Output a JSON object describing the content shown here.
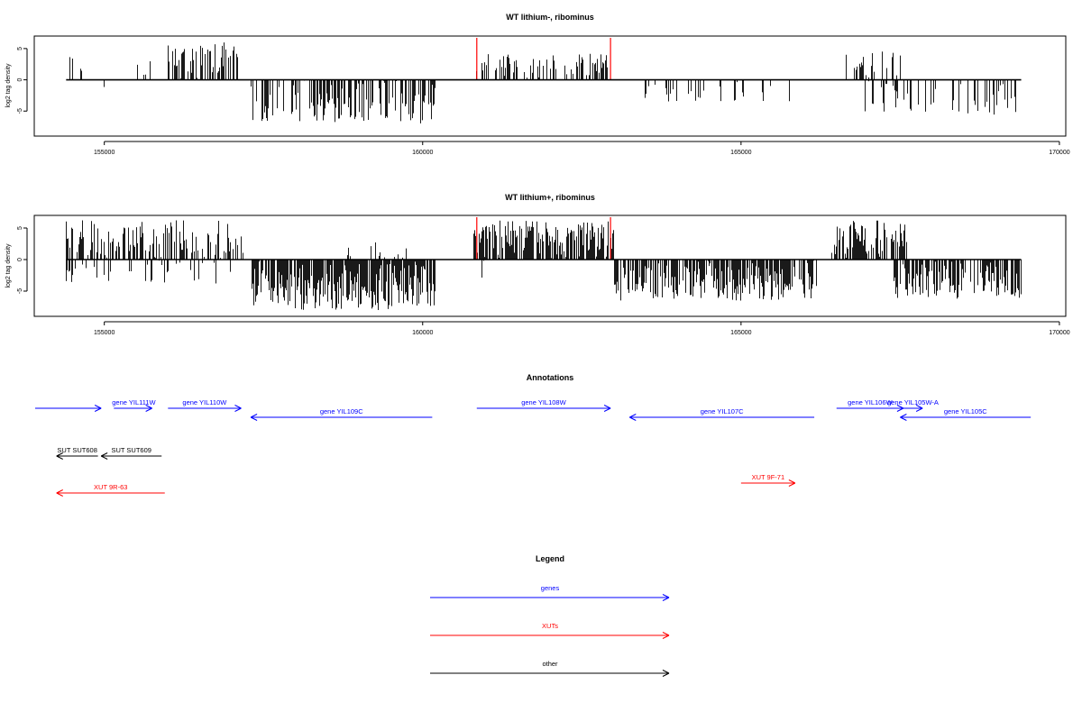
{
  "chart_data": [
    {
      "type": "bar",
      "title": "WT lithium-, ribominus",
      "ylabel": "log2 tag density",
      "xlim": [
        153900,
        170100
      ],
      "ylim": [
        -9,
        7
      ],
      "x_ticks": [
        "155000",
        "160000",
        "165000",
        "170000"
      ],
      "x_tick_values": [
        155000,
        160000,
        165000,
        170000
      ],
      "y_ticks": [
        "5",
        "0",
        "-5"
      ],
      "y_tick_values": [
        5,
        0,
        -5
      ],
      "plus_strand_segments": [
        {
          "from": 154450,
          "to": 154700,
          "density": 0.16,
          "max": 4.2
        },
        {
          "from": 154850,
          "to": 155100,
          "density": 0.05,
          "max": 2.0
        },
        {
          "from": 155300,
          "to": 155750,
          "density": 0.1,
          "max": 3.8
        },
        {
          "from": 156000,
          "to": 157100,
          "density": 0.55,
          "max": 6.0
        },
        {
          "from": 160800,
          "to": 162900,
          "density": 0.4,
          "max": 4.2
        },
        {
          "from": 164300,
          "to": 164400,
          "density": 0.05,
          "max": 1.5
        },
        {
          "from": 165150,
          "to": 165200,
          "density": 0.1,
          "max": 2.5
        },
        {
          "from": 166500,
          "to": 167500,
          "density": 0.25,
          "max": 4.6
        }
      ],
      "minus_strand_segments": [
        {
          "from": 154500,
          "to": 154600,
          "density": 0.08,
          "max": 2.5
        },
        {
          "from": 154900,
          "to": 155000,
          "density": 0.05,
          "max": 1.5
        },
        {
          "from": 155650,
          "to": 155750,
          "density": 0.05,
          "max": 1.0
        },
        {
          "from": 157300,
          "to": 160200,
          "density": 0.5,
          "max": 7.0
        },
        {
          "from": 163300,
          "to": 165800,
          "density": 0.18,
          "max": 3.5
        },
        {
          "from": 166900,
          "to": 169400,
          "density": 0.28,
          "max": 5.6
        }
      ],
      "markers": [
        160850,
        162950
      ],
      "marker_color": "#ff0000"
    },
    {
      "type": "bar",
      "title": "WT lithium+, ribominus",
      "ylabel": "log2 tag density",
      "xlim": [
        153900,
        170100
      ],
      "ylim": [
        -9,
        7
      ],
      "x_ticks": [
        "155000",
        "160000",
        "165000",
        "170000"
      ],
      "x_tick_values": [
        155000,
        160000,
        165000,
        170000
      ],
      "y_ticks": [
        "5",
        "0",
        "-5"
      ],
      "y_tick_values": [
        5,
        0,
        -5
      ],
      "plus_strand_segments": [
        {
          "from": 154400,
          "to": 157200,
          "density": 0.6,
          "max": 6.3
        },
        {
          "from": 158700,
          "to": 159800,
          "density": 0.15,
          "max": 2.8
        },
        {
          "from": 160600,
          "to": 160800,
          "density": 0.1,
          "max": 3.5
        },
        {
          "from": 160800,
          "to": 163000,
          "density": 0.8,
          "max": 6.2
        },
        {
          "from": 166400,
          "to": 167600,
          "density": 0.7,
          "max": 6.2
        }
      ],
      "minus_strand_segments": [
        {
          "from": 154400,
          "to": 157000,
          "density": 0.2,
          "max": 3.8
        },
        {
          "from": 157300,
          "to": 160200,
          "density": 0.85,
          "max": 8.0
        },
        {
          "from": 160900,
          "to": 161000,
          "density": 0.3,
          "max": 4.0
        },
        {
          "from": 163000,
          "to": 166200,
          "density": 0.8,
          "max": 6.5
        },
        {
          "from": 167400,
          "to": 169400,
          "density": 0.7,
          "max": 6.2
        }
      ],
      "markers": [
        160850,
        162950
      ],
      "marker_color": "#ff0000"
    }
  ],
  "annotations": {
    "title": "Annotations",
    "xlim": [
      153900,
      170100
    ],
    "features": [
      {
        "label": "",
        "type": "genes",
        "strand": "+",
        "start": 153900,
        "end": 154950,
        "row": 0,
        "label_pos": "center"
      },
      {
        "label": "gene YIL111W",
        "type": "genes",
        "strand": "+",
        "start": 155150,
        "end": 155750,
        "row": 0,
        "label_pos": "top-left"
      },
      {
        "label": "gene YIL110W",
        "type": "genes",
        "strand": "+",
        "start": 156000,
        "end": 157150,
        "row": 0,
        "label_pos": "center"
      },
      {
        "label": "gene YIL109C",
        "type": "genes",
        "strand": "-",
        "start": 157300,
        "end": 160150,
        "row": 1,
        "label_pos": "center"
      },
      {
        "label": "gene YIL108W",
        "type": "genes",
        "strand": "+",
        "start": 160850,
        "end": 162950,
        "row": 0,
        "label_pos": "center"
      },
      {
        "label": "gene YIL107C",
        "type": "genes",
        "strand": "-",
        "start": 163250,
        "end": 166150,
        "row": 1,
        "label_pos": "center"
      },
      {
        "label": "gene YIL106W",
        "type": "genes",
        "strand": "+",
        "start": 166500,
        "end": 167550,
        "row": 0,
        "label_pos": "center"
      },
      {
        "label": "gene YIL105W-A",
        "type": "genes",
        "strand": "+",
        "start": 167550,
        "end": 167850,
        "row": 0,
        "label_pos": "center"
      },
      {
        "label": "gene YIL105C",
        "type": "genes",
        "strand": "-",
        "start": 167500,
        "end": 169550,
        "row": 1,
        "label_pos": "center"
      },
      {
        "label": "SUT SUT608",
        "type": "other",
        "strand": "-",
        "start": 154250,
        "end": 154900,
        "row": 2,
        "label_pos": "center"
      },
      {
        "label": "SUT SUT609",
        "type": "other",
        "strand": "-",
        "start": 154950,
        "end": 155900,
        "row": 2,
        "label_pos": "center"
      },
      {
        "label": "XUT 9R-63",
        "type": "XUTs",
        "strand": "-",
        "start": 154250,
        "end": 155950,
        "row": 3,
        "label_pos": "center"
      },
      {
        "label": "XUT 9F-71",
        "type": "XUTs",
        "strand": "+",
        "start": 165000,
        "end": 165850,
        "row": 4,
        "label_pos": "center"
      }
    ]
  },
  "legend": {
    "title": "Legend",
    "items": [
      {
        "label": "genes",
        "type": "genes"
      },
      {
        "label": "XUTs",
        "type": "XUTs"
      },
      {
        "label": "other",
        "type": "other"
      }
    ]
  },
  "colors": {
    "genes": "#0000ff",
    "XUTs": "#ff0000",
    "other": "#000000",
    "bars": "#000000",
    "axis": "#000000"
  }
}
